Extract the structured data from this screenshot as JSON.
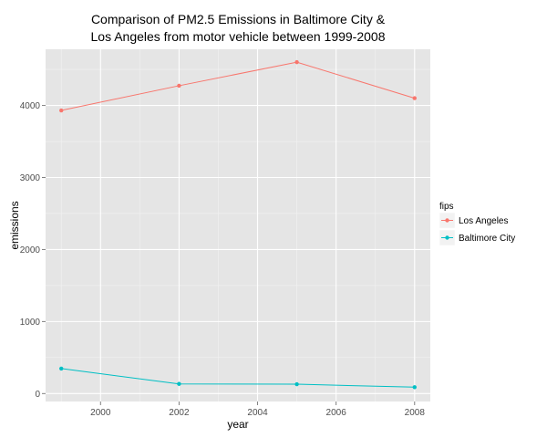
{
  "chart_data": {
    "type": "line",
    "title_lines": [
      "Comparison of PM2.5 Emissions in Baltimore City &",
      "Los Angeles from motor vehicle between 1999-2008"
    ],
    "xlabel": "year",
    "ylabel": "emissions",
    "x": [
      1999,
      2002,
      2005,
      2008
    ],
    "xlim": [
      1998.6,
      2008.4
    ],
    "ylim": [
      -110,
      4780
    ],
    "x_ticks": [
      2000,
      2002,
      2004,
      2006,
      2008
    ],
    "y_ticks": [
      0,
      1000,
      2000,
      3000,
      4000
    ],
    "grid": true,
    "legend_title": "fips",
    "legend_position": "right",
    "series": [
      {
        "name": "Los Angeles",
        "color": "#F8766D",
        "values": [
          3931,
          4274,
          4601,
          4101
        ]
      },
      {
        "name": "Baltimore City",
        "color": "#00BFC4",
        "values": [
          347,
          134,
          130,
          89
        ]
      }
    ]
  }
}
